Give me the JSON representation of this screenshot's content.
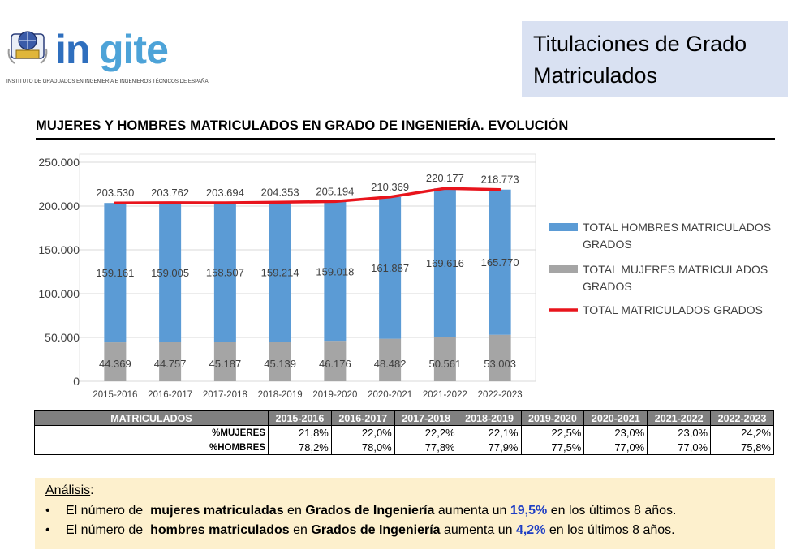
{
  "brand": {
    "logo_text": "ingite",
    "tagline": "INSTITUTO DE GRADUADOS EN INGENIERÍA E INGENIEROS TÉCNICOS DE ESPAÑA"
  },
  "header": {
    "title_line1": "Titulaciones de Grado",
    "title_line2": "Matriculados"
  },
  "section": {
    "heading": "MUJERES Y HOMBRES MATRICULADOS EN GRADO DE INGENIERÍA. EVOLUCIÓN"
  },
  "chart_data": {
    "type": "bar",
    "stacked": true,
    "title": "MUJERES Y HOMBRES MATRICULADOS EN GRADO DE INGENIERÍA. EVOLUCIÓN",
    "categories": [
      "2015-2016",
      "2016-2017",
      "2017-2018",
      "2018-2019",
      "2019-2020",
      "2020-2021",
      "2021-2022",
      "2022-2023"
    ],
    "series": [
      {
        "name": "TOTAL MUJERES MATRICULADOS GRADOS",
        "kind": "bar",
        "color": "#a5a5a5",
        "values": [
          44369,
          44757,
          45187,
          45139,
          46176,
          48482,
          50561,
          53003
        ],
        "labels": [
          "44.369",
          "44.757",
          "45.187",
          "45.139",
          "46.176",
          "48.482",
          "50.561",
          "53.003"
        ]
      },
      {
        "name": "TOTAL HOMBRES MATRICULADOS GRADOS",
        "kind": "bar",
        "color": "#5b9bd5",
        "values": [
          159161,
          159005,
          158507,
          159214,
          159018,
          161887,
          169616,
          165770
        ],
        "labels": [
          "159.161",
          "159.005",
          "158.507",
          "159.214",
          "159.018",
          "161.887",
          "169.616",
          "165.770"
        ]
      },
      {
        "name": "TOTAL MATRICULADOS GRADOS",
        "kind": "line",
        "color": "#e8141c",
        "values": [
          203530,
          203762,
          203694,
          204353,
          205194,
          210369,
          220177,
          218773
        ],
        "labels": [
          "203.530",
          "203.762",
          "203.694",
          "204.353",
          "205.194",
          "210.369",
          "220.177",
          "218.773"
        ]
      }
    ],
    "legend_order": [
      "TOTAL HOMBRES MATRICULADOS GRADOS",
      "TOTAL MUJERES MATRICULADOS GRADOS",
      "TOTAL MATRICULADOS GRADOS"
    ],
    "legend_position": "right",
    "ylim": [
      0,
      250000
    ],
    "yticks": [
      0,
      50000,
      100000,
      150000,
      200000,
      250000
    ],
    "ytick_labels": [
      "0",
      "50.000",
      "100.000",
      "150.000",
      "200.000",
      "250.000"
    ],
    "grid": true
  },
  "table": {
    "corner_label": "MATRICULADOS",
    "columns": [
      "2015-2016",
      "2016-2017",
      "2017-2018",
      "2018-2019",
      "2019-2020",
      "2020-2021",
      "2021-2022",
      "2022-2023"
    ],
    "rows": [
      {
        "label": "%MUJERES",
        "values": [
          "21,8%",
          "22,0%",
          "22,2%",
          "22,1%",
          "22,5%",
          "23,0%",
          "23,0%",
          "24,2%"
        ]
      },
      {
        "label": "%HOMBRES",
        "values": [
          "78,2%",
          "78,0%",
          "77,8%",
          "77,9%",
          "77,5%",
          "77,0%",
          "77,0%",
          "75,8%"
        ]
      }
    ]
  },
  "analysis": {
    "heading": "Análisis",
    "heading_suffix": ":",
    "line1": {
      "a": "El número de",
      "b": "mujeres matriculadas",
      "c": "en",
      "d": "Grados de Ingeniería",
      "e": "aumenta un",
      "f": "19,5%",
      "g": "en los últimos 8 años."
    },
    "line2": {
      "a": "El número de",
      "b": "hombres matriculados",
      "c": "en",
      "d": "Grados de Ingeniería",
      "e": "aumenta un",
      "f": "4,2%",
      "g": "en los últimos 8 años."
    }
  },
  "colors": {
    "men": "#5b9bd5",
    "women": "#a5a5a5",
    "total": "#e8141c",
    "title_bg": "#d9e1f2",
    "analysis_bg": "#fdf0cd",
    "highlight": "#1f3fc4"
  }
}
